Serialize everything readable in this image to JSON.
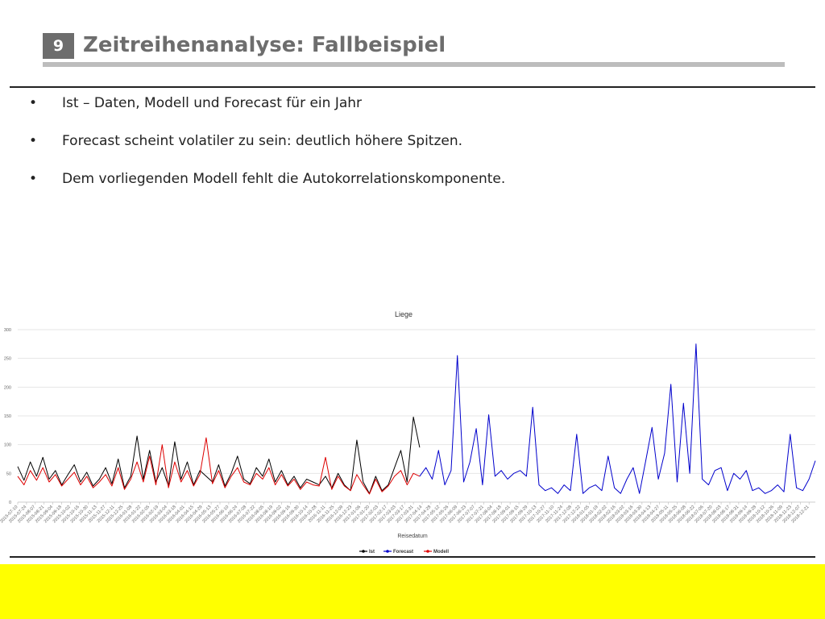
{
  "slide": {
    "number": "9",
    "title": "Zeitreihenanalyse: Fallbeispiel",
    "bullets": [
      "Ist – Daten, Modell und Forecast für ein Jahr",
      "Forecast scheint volatiler zu sein: deutlich höhere Spitzen.",
      "Dem vorliegenden Modell fehlt die Autokorrelationskomponente."
    ],
    "bullet_symbol": "•"
  },
  "colors": {
    "ist": "#000000",
    "forecast": "#0000cc",
    "modell": "#dd0000",
    "footer": "#ffff00"
  },
  "chart_data": {
    "type": "line",
    "title": "Liege",
    "xlabel": "Reisedatum",
    "ylabel": "",
    "ylim": [
      0,
      300
    ],
    "yticks": [
      0,
      50,
      100,
      150,
      200,
      250,
      300
    ],
    "grid": true,
    "legend_position": "bottom",
    "x_start": "2015-07-10",
    "x_end": "2018-12-31",
    "xtick_labels": [
      "2015-07-10",
      "2015-07-24",
      "2015-08-07",
      "2015-08-21",
      "2015-09-04",
      "2015-09-18",
      "2015-10-02",
      "2015-10-16",
      "2015-10-30",
      "2015-11-13",
      "2015-11-27",
      "2015-12-11",
      "2015-12-25",
      "2016-01-08",
      "2016-01-22",
      "2016-02-05",
      "2016-02-19",
      "2016-03-04",
      "2016-03-18",
      "2016-04-01",
      "2016-04-15",
      "2016-04-29",
      "2016-05-13",
      "2016-05-27",
      "2016-06-10",
      "2016-06-24",
      "2016-07-08",
      "2016-07-22",
      "2016-08-05",
      "2016-08-19",
      "2016-09-02",
      "2016-09-16",
      "2016-09-30",
      "2016-10-14",
      "2016-10-28",
      "2016-11-11",
      "2016-11-25",
      "2016-12-09",
      "2016-12-23",
      "2017-01-06",
      "2017-01-20",
      "2017-02-03",
      "2017-02-17",
      "2017-03-03",
      "2017-03-17",
      "2017-03-31",
      "2017-04-14",
      "2017-04-28",
      "2017-05-12",
      "2017-05-26",
      "2017-06-09",
      "2017-06-23",
      "2017-07-07",
      "2017-07-21",
      "2017-08-04",
      "2017-08-18",
      "2017-09-01",
      "2017-09-15",
      "2017-09-29",
      "2017-10-13",
      "2017-10-27",
      "2017-11-10",
      "2017-11-24",
      "2017-12-08",
      "2017-12-22",
      "2018-01-05",
      "2018-01-19",
      "2018-02-02",
      "2018-02-16",
      "2018-03-02",
      "2018-03-16",
      "2018-03-30",
      "2018-04-13",
      "2018-04-27",
      "2018-05-11",
      "2018-05-25",
      "2018-06-08",
      "2018-06-22",
      "2018-07-06",
      "2018-07-20",
      "2018-08-03",
      "2018-08-17",
      "2018-08-31",
      "2018-09-14",
      "2018-09-28",
      "2018-10-12",
      "2018-10-26",
      "2018-11-09",
      "2018-11-23",
      "2018-12-07",
      "2018-12-21"
    ],
    "series": [
      {
        "name": "Ist",
        "x": [
          "2015-07-10",
          "2015-07-20",
          "2015-07-30",
          "2015-08-09",
          "2015-08-19",
          "2015-08-29",
          "2015-09-08",
          "2015-09-18",
          "2015-09-28",
          "2015-10-08",
          "2015-10-18",
          "2015-10-28",
          "2015-11-07",
          "2015-11-17",
          "2015-11-27",
          "2015-12-07",
          "2015-12-17",
          "2015-12-27",
          "2016-01-06",
          "2016-01-16",
          "2016-01-26",
          "2016-02-05",
          "2016-02-15",
          "2016-02-25",
          "2016-03-06",
          "2016-03-16",
          "2016-03-26",
          "2016-04-05",
          "2016-04-15",
          "2016-04-25",
          "2016-05-05",
          "2016-05-15",
          "2016-05-25",
          "2016-06-04",
          "2016-06-14",
          "2016-06-24",
          "2016-07-04",
          "2016-07-14",
          "2016-07-24",
          "2016-08-03",
          "2016-08-13",
          "2016-08-23",
          "2016-09-02",
          "2016-09-12",
          "2016-09-22",
          "2016-10-02",
          "2016-10-12",
          "2016-10-22",
          "2016-11-01",
          "2016-11-11",
          "2016-11-21",
          "2016-12-01",
          "2016-12-11",
          "2016-12-21",
          "2016-12-31",
          "2017-01-10",
          "2017-01-20",
          "2017-01-30",
          "2017-02-09",
          "2017-02-19",
          "2017-03-01",
          "2017-03-11",
          "2017-03-21",
          "2017-03-31",
          "2017-04-10"
        ],
        "y": [
          62,
          38,
          70,
          45,
          78,
          40,
          55,
          30,
          48,
          65,
          35,
          52,
          28,
          40,
          60,
          32,
          75,
          25,
          45,
          115,
          40,
          90,
          35,
          60,
          28,
          105,
          40,
          70,
          30,
          55,
          45,
          35,
          65,
          28,
          50,
          80,
          40,
          32,
          60,
          45,
          75,
          35,
          55,
          30,
          45,
          25,
          40,
          35,
          30,
          45,
          25,
          50,
          30,
          20,
          108,
          35,
          15,
          45,
          20,
          30,
          60,
          90,
          35,
          148,
          95
        ]
      },
      {
        "name": "Modell",
        "x": [
          "2015-07-10",
          "2015-07-20",
          "2015-07-30",
          "2015-08-09",
          "2015-08-19",
          "2015-08-29",
          "2015-09-08",
          "2015-09-18",
          "2015-09-28",
          "2015-10-08",
          "2015-10-18",
          "2015-10-28",
          "2015-11-07",
          "2015-11-17",
          "2015-11-27",
          "2015-12-07",
          "2015-12-17",
          "2015-12-27",
          "2016-01-06",
          "2016-01-16",
          "2016-01-26",
          "2016-02-05",
          "2016-02-15",
          "2016-02-25",
          "2016-03-06",
          "2016-03-16",
          "2016-03-26",
          "2016-04-05",
          "2016-04-15",
          "2016-04-25",
          "2016-05-05",
          "2016-05-15",
          "2016-05-25",
          "2016-06-04",
          "2016-06-14",
          "2016-06-24",
          "2016-07-04",
          "2016-07-14",
          "2016-07-24",
          "2016-08-03",
          "2016-08-13",
          "2016-08-23",
          "2016-09-02",
          "2016-09-12",
          "2016-09-22",
          "2016-10-02",
          "2016-10-12",
          "2016-10-22",
          "2016-11-01",
          "2016-11-11",
          "2016-11-21",
          "2016-12-01",
          "2016-12-11",
          "2016-12-21",
          "2016-12-31",
          "2017-01-10",
          "2017-01-20",
          "2017-01-30",
          "2017-02-09",
          "2017-02-19",
          "2017-03-01",
          "2017-03-11",
          "2017-03-21",
          "2017-03-31",
          "2017-04-10"
        ],
        "y": [
          45,
          30,
          55,
          38,
          60,
          35,
          48,
          28,
          40,
          52,
          30,
          45,
          25,
          35,
          48,
          28,
          60,
          22,
          40,
          70,
          35,
          80,
          30,
          100,
          25,
          70,
          35,
          55,
          28,
          48,
          112,
          32,
          55,
          25,
          45,
          60,
          35,
          30,
          50,
          40,
          60,
          30,
          48,
          28,
          40,
          22,
          35,
          30,
          28,
          78,
          22,
          45,
          28,
          20,
          48,
          30,
          14,
          40,
          18,
          28,
          45,
          55,
          30,
          50,
          45
        ]
      },
      {
        "name": "Forecast",
        "x": [
          "2017-04-10",
          "2017-04-20",
          "2017-04-30",
          "2017-05-10",
          "2017-05-20",
          "2017-05-30",
          "2017-06-09",
          "2017-06-19",
          "2017-06-29",
          "2017-07-09",
          "2017-07-19",
          "2017-07-29",
          "2017-08-08",
          "2017-08-18",
          "2017-08-28",
          "2017-09-07",
          "2017-09-17",
          "2017-09-27",
          "2017-10-07",
          "2017-10-17",
          "2017-10-27",
          "2017-11-06",
          "2017-11-16",
          "2017-11-26",
          "2017-12-06",
          "2017-12-16",
          "2017-12-26",
          "2018-01-05",
          "2018-01-15",
          "2018-01-25",
          "2018-02-04",
          "2018-02-14",
          "2018-02-24",
          "2018-03-06",
          "2018-03-16",
          "2018-03-26",
          "2018-04-05",
          "2018-04-15",
          "2018-04-25",
          "2018-05-05",
          "2018-05-15",
          "2018-05-25",
          "2018-06-04",
          "2018-06-14",
          "2018-06-24",
          "2018-07-04",
          "2018-07-14",
          "2018-07-24",
          "2018-08-03",
          "2018-08-13",
          "2018-08-23",
          "2018-09-02",
          "2018-09-12",
          "2018-09-22",
          "2018-10-02",
          "2018-10-12",
          "2018-10-22",
          "2018-11-01",
          "2018-11-11",
          "2018-11-21",
          "2018-12-01",
          "2018-12-11",
          "2018-12-21",
          "2018-12-31"
        ],
        "y": [
          45,
          60,
          40,
          90,
          30,
          55,
          255,
          35,
          70,
          128,
          30,
          152,
          45,
          55,
          40,
          50,
          55,
          45,
          165,
          30,
          20,
          25,
          15,
          30,
          20,
          118,
          15,
          25,
          30,
          20,
          80,
          25,
          15,
          40,
          60,
          15,
          72,
          130,
          40,
          85,
          205,
          35,
          172,
          50,
          275,
          40,
          30,
          55,
          60,
          20,
          50,
          40,
          55,
          20,
          25,
          15,
          20,
          30,
          18,
          118,
          25,
          20,
          40,
          72
        ]
      }
    ]
  }
}
